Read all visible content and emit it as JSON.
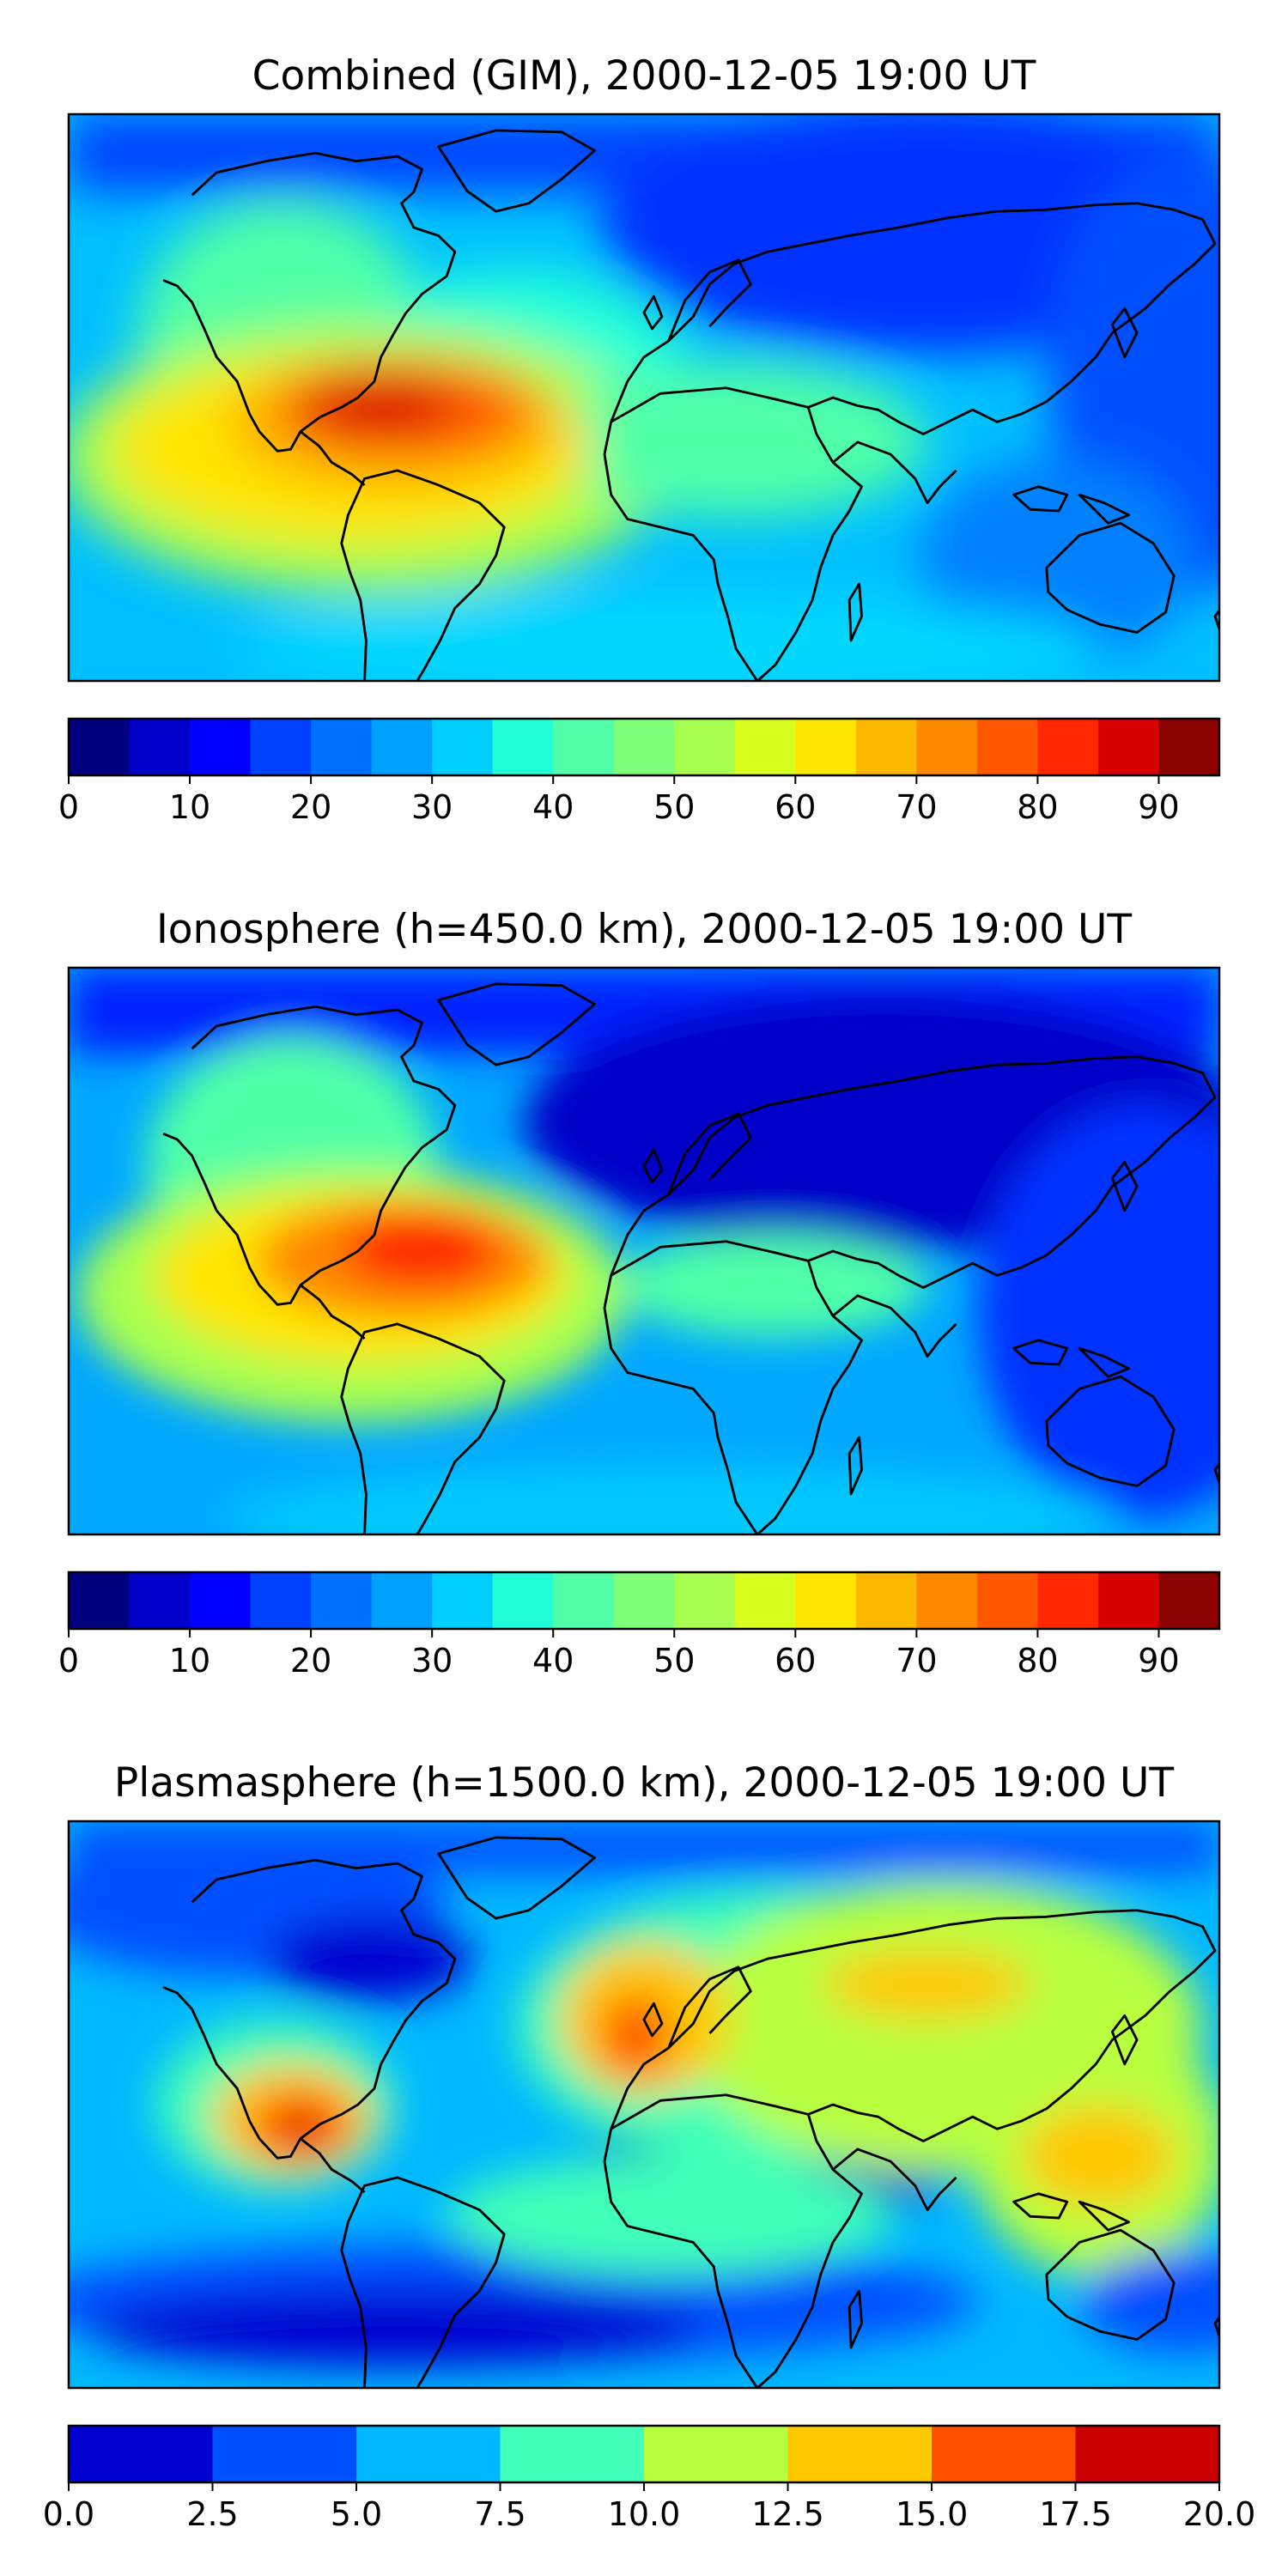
{
  "figure": {
    "type": "map_panels",
    "panels": [
      {
        "id": "combined",
        "title": "Combined (GIM), 2000-12-05 19:00 UT",
        "colorbar": {
          "colormap": "jet",
          "levels": [
            0,
            5,
            10,
            15,
            20,
            25,
            30,
            35,
            40,
            45,
            50,
            55,
            60,
            65,
            70,
            75,
            80,
            85,
            90,
            95
          ],
          "ticks": [
            0,
            10,
            20,
            30,
            40,
            50,
            60,
            70,
            80,
            90
          ],
          "tick_labels": [
            "0",
            "10",
            "20",
            "30",
            "40",
            "50",
            "60",
            "70",
            "80",
            "90"
          ]
        }
      },
      {
        "id": "ionosphere",
        "title": "Ionosphere  (h=450.0 km), 2000-12-05 19:00 UT",
        "colorbar": {
          "colormap": "jet",
          "levels": [
            0,
            5,
            10,
            15,
            20,
            25,
            30,
            35,
            40,
            45,
            50,
            55,
            60,
            65,
            70,
            75,
            80,
            85,
            90,
            95
          ],
          "ticks": [
            0,
            10,
            20,
            30,
            40,
            50,
            60,
            70,
            80,
            90
          ],
          "tick_labels": [
            "0",
            "10",
            "20",
            "30",
            "40",
            "50",
            "60",
            "70",
            "80",
            "90"
          ]
        }
      },
      {
        "id": "plasmasphere",
        "title": "Plasmasphere (h=1500.0 km), 2000-12-05 19:00 UT",
        "colorbar": {
          "colormap": "jet",
          "levels": [
            0,
            2.5,
            5,
            7.5,
            10,
            12.5,
            15,
            17.5,
            20
          ],
          "ticks": [
            0,
            2.5,
            5,
            7.5,
            10,
            12.5,
            15,
            17.5,
            20
          ],
          "tick_labels": [
            "0.0",
            "2.5",
            "5.0",
            "7.5",
            "10.0",
            "12.5",
            "15.0",
            "17.5",
            "20.0"
          ]
        }
      }
    ]
  },
  "colors": {
    "jet19": [
      "#00007f",
      "#0000c8",
      "#0000ff",
      "#0040ff",
      "#0070ff",
      "#00a0ff",
      "#00d0ff",
      "#20ffd8",
      "#50ffa8",
      "#80ff78",
      "#a8ff50",
      "#d8ff20",
      "#ffe600",
      "#ffb800",
      "#ff8800",
      "#ff5800",
      "#ff2800",
      "#d80000",
      "#8b0000"
    ],
    "jet8": [
      "#0000d0",
      "#0050ff",
      "#00b8ff",
      "#40ffb8",
      "#b8ff40",
      "#ffc800",
      "#ff5000",
      "#c80000"
    ],
    "coastline": "#000000"
  }
}
